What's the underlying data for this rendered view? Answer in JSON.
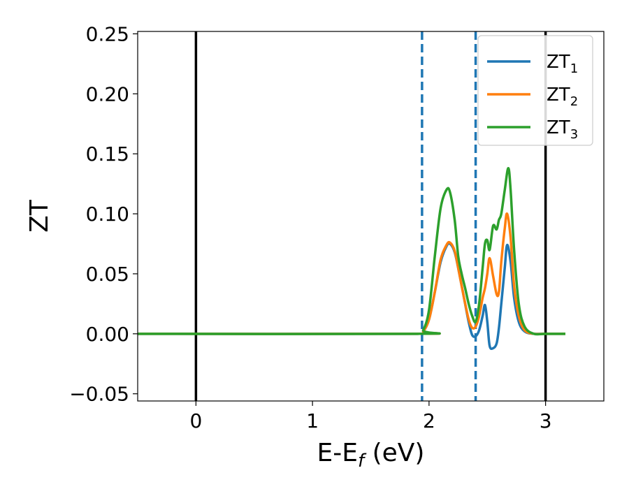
{
  "colors": {
    "series_1": "#1f77b4",
    "series_2": "#ff7f0e",
    "series_3": "#2ca02c",
    "vertical_solid": "#000000",
    "vertical_dashed": "#1f77b4"
  },
  "chart_data": {
    "type": "line",
    "title": "",
    "xlabel_main": "E-E",
    "xlabel_sub": "f",
    "xlabel_tail": " (eV)",
    "ylabel": "ZT",
    "xlim": [
      -0.5,
      3.5
    ],
    "ylim": [
      -0.056,
      0.252
    ],
    "grid": false,
    "legend_position": "top-right",
    "x_ticks": [
      0,
      1,
      2,
      3
    ],
    "x_tick_labels": [
      "0",
      "1",
      "2",
      "3"
    ],
    "y_ticks": [
      -0.05,
      0.0,
      0.05,
      0.1,
      0.15,
      0.2,
      0.25
    ],
    "y_tick_labels": [
      "−0.05",
      "0.00",
      "0.05",
      "0.10",
      "0.15",
      "0.20",
      "0.25"
    ],
    "vertical_lines_solid": [
      0,
      3
    ],
    "vertical_lines_dashed": [
      1.94,
      2.4
    ],
    "series": [
      {
        "name_main": "ZT",
        "name_sub": "1",
        "x": [
          -0.5,
          1.9,
          1.95,
          2.0,
          2.05,
          2.1,
          2.15,
          2.18,
          2.22,
          2.26,
          2.3,
          2.34,
          2.37,
          2.4,
          2.43,
          2.46,
          2.48,
          2.5,
          2.52,
          2.55,
          2.58,
          2.6,
          2.62,
          2.65,
          2.67,
          2.7,
          2.73,
          2.77,
          2.82,
          2.9,
          3.0,
          3.17
        ],
        "y": [
          0.0,
          0.0,
          0.002,
          0.012,
          0.035,
          0.06,
          0.073,
          0.075,
          0.068,
          0.05,
          0.03,
          0.01,
          -0.001,
          -0.002,
          0.003,
          0.015,
          0.024,
          0.01,
          -0.01,
          -0.012,
          -0.008,
          0.005,
          0.025,
          0.055,
          0.074,
          0.06,
          0.03,
          0.01,
          0.002,
          0.0,
          0.0,
          0.0
        ]
      },
      {
        "name_main": "ZT",
        "name_sub": "2",
        "x": [
          -0.5,
          1.9,
          1.95,
          2.0,
          2.05,
          2.1,
          2.15,
          2.18,
          2.22,
          2.26,
          2.3,
          2.34,
          2.37,
          2.4,
          2.43,
          2.46,
          2.48,
          2.5,
          2.52,
          2.55,
          2.58,
          2.6,
          2.62,
          2.65,
          2.67,
          2.7,
          2.73,
          2.77,
          2.82,
          2.9,
          3.0,
          3.17
        ],
        "y": [
          0.0,
          0.0,
          0.002,
          0.012,
          0.035,
          0.062,
          0.074,
          0.076,
          0.069,
          0.05,
          0.03,
          0.012,
          0.005,
          0.006,
          0.015,
          0.03,
          0.038,
          0.05,
          0.063,
          0.048,
          0.033,
          0.035,
          0.06,
          0.088,
          0.1,
          0.08,
          0.04,
          0.015,
          0.003,
          0.0,
          0.0,
          0.0
        ]
      },
      {
        "name_main": "ZT",
        "name_sub": "3",
        "x": [
          -0.5,
          1.9,
          1.95,
          2.0,
          2.05,
          2.1,
          2.15,
          2.18,
          2.22,
          2.25,
          2.28,
          2.31,
          2.34,
          2.37,
          2.4,
          2.43,
          2.46,
          2.48,
          2.5,
          2.52,
          2.55,
          2.58,
          2.6,
          2.62,
          2.65,
          2.68,
          2.7,
          2.73,
          2.77,
          2.82,
          2.9,
          3.0,
          3.17
        ],
        "y": [
          0.0,
          0.0,
          0.003,
          0.02,
          0.065,
          0.105,
          0.12,
          0.118,
          0.095,
          0.065,
          0.05,
          0.038,
          0.025,
          0.015,
          0.01,
          0.025,
          0.055,
          0.075,
          0.078,
          0.07,
          0.09,
          0.087,
          0.095,
          0.1,
          0.12,
          0.138,
          0.12,
          0.07,
          0.025,
          0.006,
          0.0,
          0.0,
          0.0
        ]
      }
    ]
  }
}
